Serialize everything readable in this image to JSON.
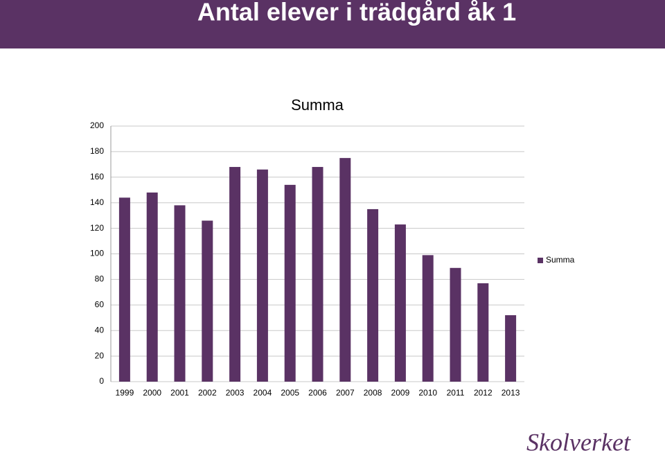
{
  "slide_title": "Antal elever i trädgård åk 1",
  "logo": "Skolverket",
  "chart_data": {
    "type": "bar",
    "title": "Summa",
    "categories": [
      "1999",
      "2000",
      "2001",
      "2002",
      "2003",
      "2004",
      "2005",
      "2006",
      "2007",
      "2008",
      "2009",
      "2010",
      "2011",
      "2012",
      "2013"
    ],
    "series": [
      {
        "name": "Summa",
        "color": "#5a3264",
        "values": [
          144,
          148,
          138,
          126,
          168,
          166,
          154,
          168,
          175,
          135,
          123,
          99,
          89,
          77,
          52
        ]
      }
    ],
    "ylim": [
      0,
      200
    ],
    "yticks": [
      0,
      20,
      40,
      60,
      80,
      100,
      120,
      140,
      160,
      180,
      200
    ],
    "grid": true,
    "legend": "right"
  }
}
